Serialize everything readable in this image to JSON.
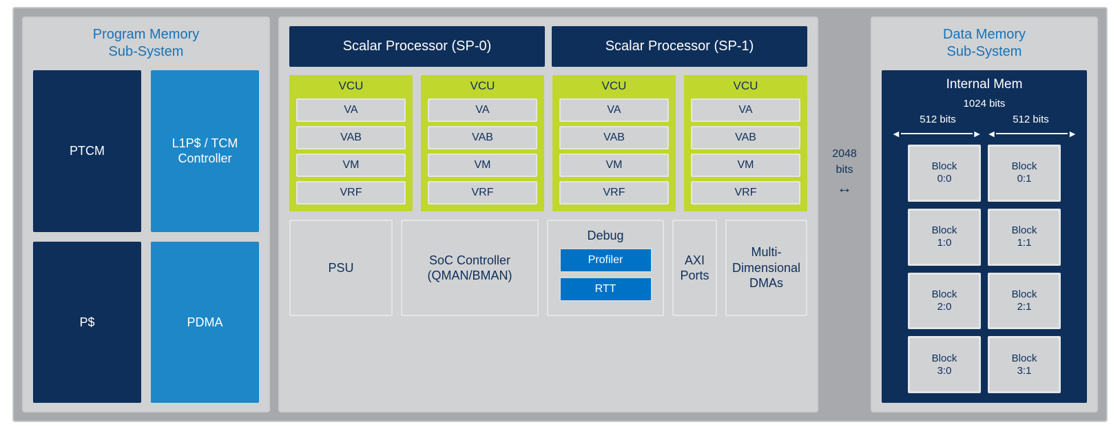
{
  "colors": {
    "outer_bg": "#a7a9ac",
    "panel_bg": "#d1d2d4",
    "panel_border": "#c9cbcd",
    "title_color": "#1573b8",
    "navy": "#0e2f5a",
    "light_blue": "#1e87c8",
    "vcu_bg": "#c0d72e",
    "debug_sub_bg": "#0072c6",
    "item_border": "#e4e5e6"
  },
  "program_memory": {
    "title_line1": "Program Memory",
    "title_line2": "Sub-System",
    "blocks": {
      "ptcm": "PTCM",
      "l1p": "L1P$ / TCM\nController",
      "pcache": "P$",
      "pdma": "PDMA"
    }
  },
  "center": {
    "scalar_processors": [
      "Scalar Processor (SP-0)",
      "Scalar Processor (SP-1)"
    ],
    "vcu_title": "VCU",
    "vcu_items": [
      "VA",
      "VAB",
      "VM",
      "VRF"
    ],
    "bottom": {
      "psu": "PSU",
      "soc": "SoC Controller\n(QMAN/BMAN)",
      "debug_title": "Debug",
      "debug_profiler": "Profiler",
      "debug_rtt": "RTT",
      "axi": "AXI Ports",
      "mddma": "Multi-\nDimensional\nDMAs"
    },
    "bottom_widths": {
      "psu": 150,
      "soc": 200,
      "debug": 170,
      "axi": 170,
      "mddma": 170
    }
  },
  "bus": {
    "label_line1": "2048",
    "label_line2": "bits",
    "arrow": "↔"
  },
  "data_memory": {
    "title_line1": "Data Memory",
    "title_line2": "Sub-System",
    "internal_title": "Internal Mem",
    "bits_1024": "1024 bits",
    "bits_512": "512 bits",
    "blocks": [
      "Block\n0:0",
      "Block\n0:1",
      "Block\n1:0",
      "Block\n1:1",
      "Block\n2:0",
      "Block\n2:1",
      "Block\n3:0",
      "Block\n3:1"
    ]
  }
}
